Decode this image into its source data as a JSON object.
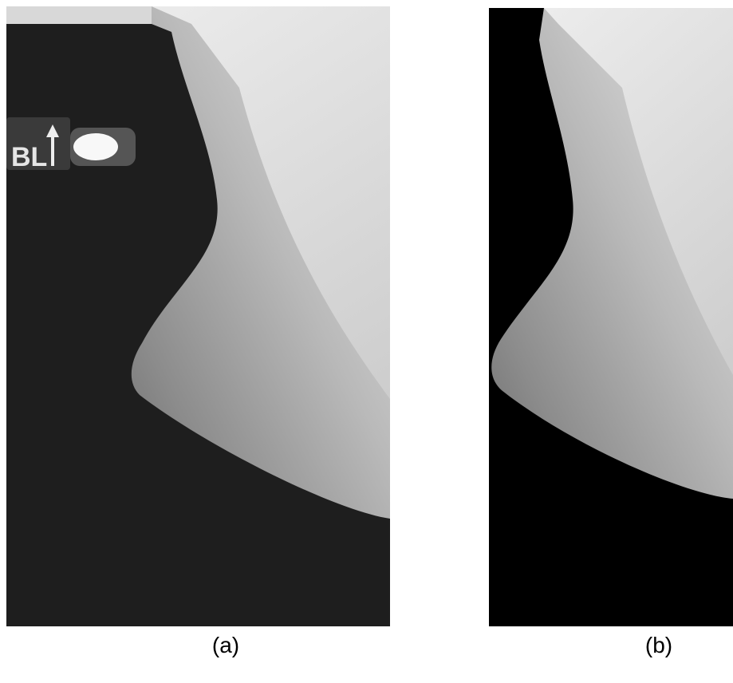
{
  "figure": {
    "panels": [
      {
        "caption": "(a)",
        "marker_text": "BL"
      },
      {
        "caption": "(b)"
      }
    ]
  }
}
